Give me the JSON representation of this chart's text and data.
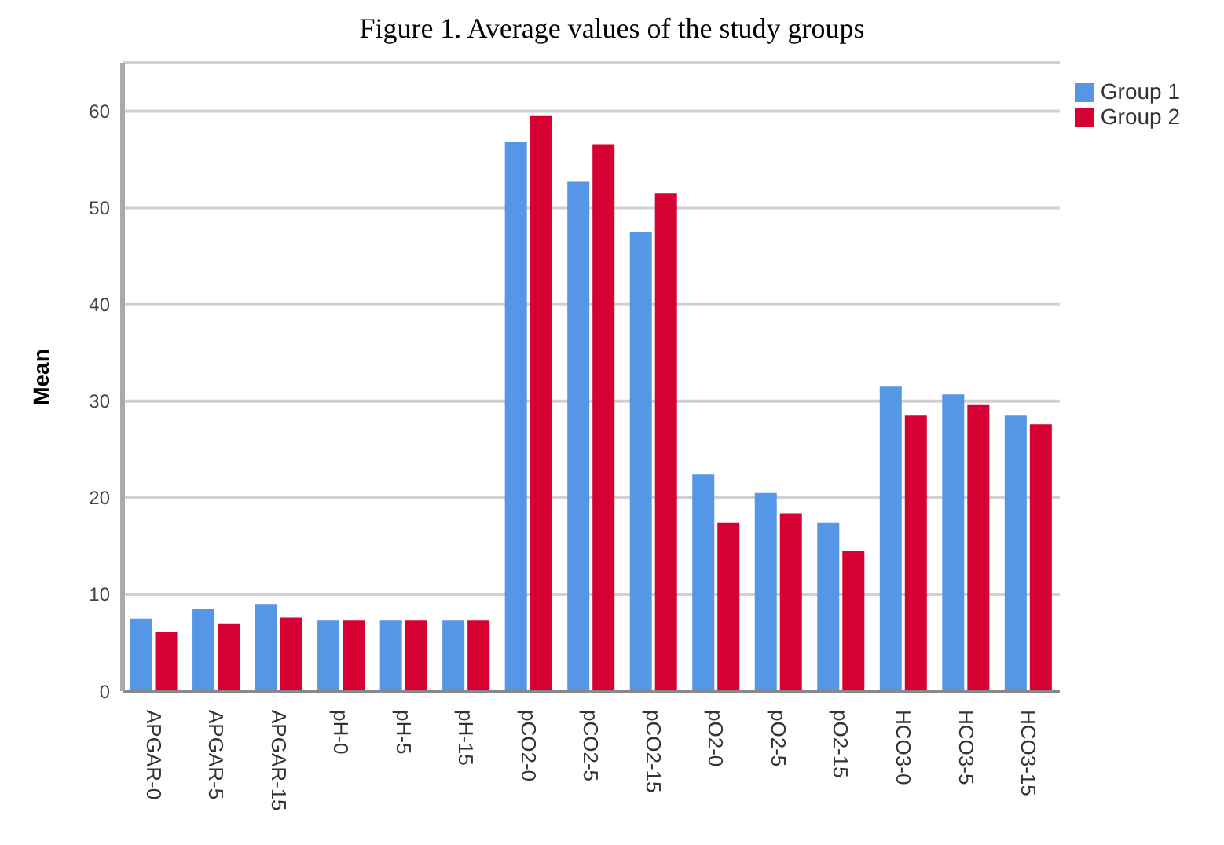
{
  "chart_data": {
    "type": "bar",
    "title": "Figure 1. Average values of the study groups",
    "ylabel": "Mean",
    "categories": [
      "APGAR-0",
      "APGAR-5",
      "APGAR-15",
      "pH-0",
      "pH-5",
      "pH-15",
      "pCO2-0",
      "pCO2-5",
      "pCO2-15",
      "pO2-0",
      "pO2-5",
      "pO2-15",
      "HCO3-0",
      "HCO3-5",
      "HCO3-15"
    ],
    "series": [
      {
        "name": "Group 1",
        "color": "#5596e6",
        "values": [
          7.5,
          8.5,
          9.0,
          7.3,
          7.3,
          7.3,
          56.8,
          52.7,
          47.5,
          22.4,
          20.5,
          17.4,
          31.5,
          30.7,
          28.5
        ]
      },
      {
        "name": "Group 2",
        "color": "#d70032",
        "values": [
          6.1,
          7.0,
          7.6,
          7.3,
          7.3,
          7.3,
          59.5,
          56.5,
          51.5,
          17.4,
          18.4,
          14.5,
          28.5,
          29.6,
          27.6
        ]
      }
    ],
    "ylim": [
      0,
      65
    ],
    "yticks": [
      0,
      10,
      20,
      30,
      40,
      50,
      60
    ],
    "grid": "y",
    "legend": "top right"
  }
}
